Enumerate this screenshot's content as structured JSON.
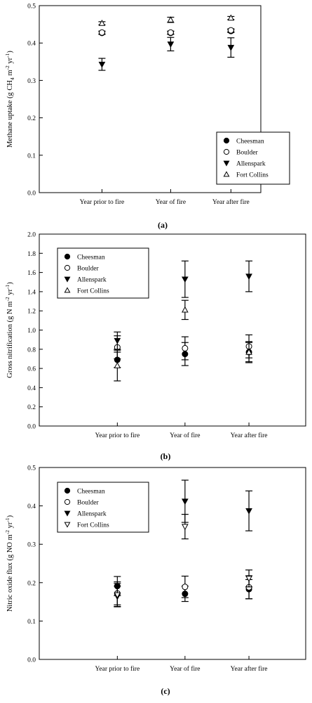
{
  "chart_data": [
    {
      "type": "scatter",
      "panel_label": "(a)",
      "categories": [
        "Year prior to fire",
        "Year of fire",
        "Year after fire"
      ],
      "ylabel_parts": [
        "Methane uptake (g CH",
        "4",
        " m",
        "-2",
        " yr",
        "-1",
        ")"
      ],
      "ylim": [
        0,
        0.5
      ],
      "yticks": [
        "0.0",
        "0.1",
        "0.2",
        "0.3",
        "0.4",
        "0.5"
      ],
      "grid": false,
      "legend_position": "bottom-right",
      "series": [
        {
          "name": "Cheesman",
          "marker": "filled-circle",
          "values": [
            0.427,
            0.427,
            0.432
          ],
          "errors": [
            0.004,
            0.004,
            0.004
          ]
        },
        {
          "name": "Boulder",
          "marker": "open-circle",
          "values": [
            0.428,
            0.428,
            0.434
          ],
          "errors": [
            0.004,
            0.004,
            0.004
          ]
        },
        {
          "name": "Allenspark",
          "marker": "filled-triangle-down",
          "values": [
            0.343,
            0.397,
            0.388
          ],
          "errors": [
            0.016,
            0.018,
            0.026
          ]
        },
        {
          "name": "Fort Collins",
          "marker": "open-triangle-up",
          "values": [
            0.453,
            0.462,
            0.467
          ],
          "errors": [
            0.004,
            0.007,
            0.004
          ]
        }
      ]
    },
    {
      "type": "scatter",
      "panel_label": "(b)",
      "categories": [
        "Year prior to fire",
        "Year of fire",
        "Year after fire"
      ],
      "ylabel_parts": [
        "Gross nitrification (g N m",
        "-2",
        " yr",
        "-1",
        ")"
      ],
      "ylim": [
        0,
        2.0
      ],
      "yticks": [
        "0.0",
        "0.2",
        "0.4",
        "0.6",
        "0.8",
        "1.0",
        "1.2",
        "1.4",
        "1.6",
        "1.8",
        "2.0"
      ],
      "grid": false,
      "legend_position": "top-left",
      "series": [
        {
          "name": "Cheesman",
          "marker": "filled-circle",
          "values": [
            0.69,
            0.75,
            0.77
          ],
          "errors": [
            0.08,
            0.12,
            0.1
          ]
        },
        {
          "name": "Boulder",
          "marker": "open-circle",
          "values": [
            0.82,
            0.81,
            0.83
          ],
          "errors": [
            0.12,
            0.12,
            0.12
          ]
        },
        {
          "name": "Allenspark",
          "marker": "filled-triangle-down",
          "values": [
            0.89,
            1.53,
            1.56
          ],
          "errors": [
            0.09,
            0.19,
            0.16
          ]
        },
        {
          "name": "Fort Collins",
          "marker": "open-triangle-up",
          "values": [
            0.63,
            1.21,
            0.77
          ],
          "errors": [
            0.16,
            0.1,
            0.11
          ]
        }
      ]
    },
    {
      "type": "scatter",
      "panel_label": "(c)",
      "categories": [
        "Year prior to fire",
        "Year of fire",
        "Year after fire"
      ],
      "ylabel_parts": [
        "Nitric oxide flux (g NO m",
        "-2",
        " yr",
        "-1",
        ")"
      ],
      "ylim": [
        0,
        0.5
      ],
      "yticks": [
        "0.0",
        "0.1",
        "0.2",
        "0.3",
        "0.4",
        "0.5"
      ],
      "grid": false,
      "legend_position": "top-left",
      "series": [
        {
          "name": "Cheesman",
          "marker": "filled-circle",
          "values": [
            0.191,
            0.171,
            0.183
          ],
          "errors": [
            0.025,
            0.02,
            0.025
          ]
        },
        {
          "name": "Boulder",
          "marker": "open-circle",
          "values": [
            0.172,
            0.189,
            0.188
          ],
          "errors": [
            0.03,
            0.028,
            0.03
          ]
        },
        {
          "name": "Allenspark",
          "marker": "filled-triangle-down",
          "values": [
            0.164,
            0.412,
            0.387
          ],
          "errors": [
            0.027,
            0.055,
            0.052
          ]
        },
        {
          "name": "Fort Collins",
          "marker": "open-triangle-down",
          "values": [
            0.168,
            0.346,
            0.211
          ],
          "errors": [
            0.03,
            0.032,
            0.022
          ]
        }
      ]
    }
  ]
}
